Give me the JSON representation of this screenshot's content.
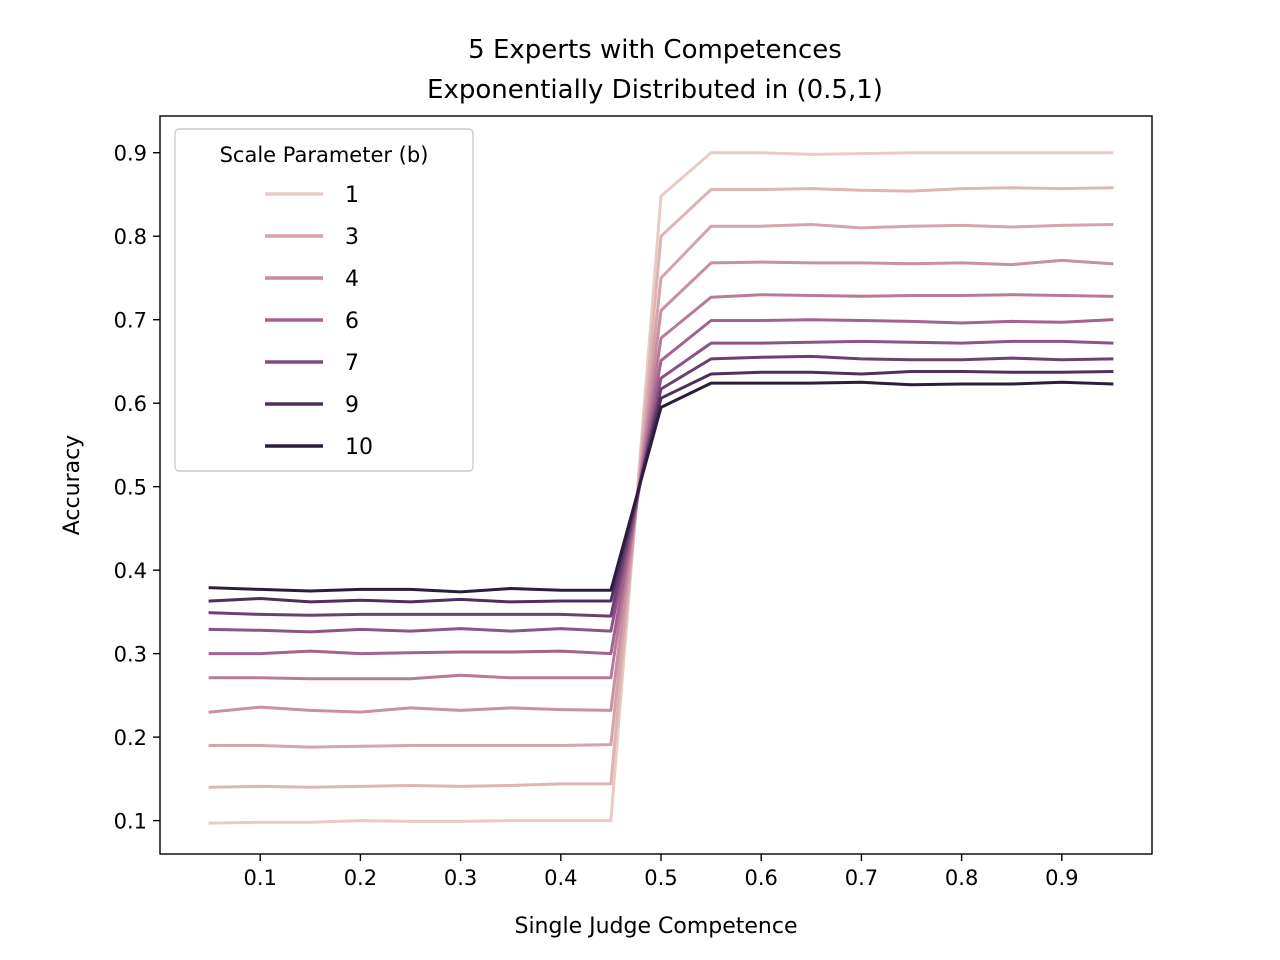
{
  "chart_data": {
    "type": "line",
    "title_line1": "5 Experts with Competences",
    "title_line2": "Exponentially Distributed in (0.5,1)",
    "xlabel": "Single Judge Competence",
    "ylabel": "Accuracy",
    "xlim": [
      0.0,
      0.99
    ],
    "ylim": [
      0.06,
      0.944
    ],
    "xticks": [
      0.1,
      0.2,
      0.3,
      0.4,
      0.5,
      0.6,
      0.7,
      0.8,
      0.9
    ],
    "xtick_labels": [
      "0.1",
      "0.2",
      "0.3",
      "0.4",
      "0.5",
      "0.6",
      "0.7",
      "0.8",
      "0.9"
    ],
    "yticks": [
      0.1,
      0.2,
      0.3,
      0.4,
      0.5,
      0.6,
      0.7,
      0.8,
      0.9
    ],
    "ytick_labels": [
      "0.1",
      "0.2",
      "0.3",
      "0.4",
      "0.5",
      "0.6",
      "0.7",
      "0.8",
      "0.9"
    ],
    "grid": false,
    "legend": {
      "title": "Scale Parameter (b)",
      "placement": "upper-left",
      "entries": [
        {
          "label": "1",
          "color": "#e8ccc4"
        },
        {
          "label": "3",
          "color": "#d6a2ac"
        },
        {
          "label": "4",
          "color": "#c78a9f"
        },
        {
          "label": "6",
          "color": "#a4628f"
        },
        {
          "label": "7",
          "color": "#844a7e"
        },
        {
          "label": "9",
          "color": "#4e2f5f"
        },
        {
          "label": "10",
          "color": "#2d1d3d"
        }
      ]
    },
    "x": [
      0.05,
      0.1,
      0.15,
      0.2,
      0.25,
      0.3,
      0.35,
      0.4,
      0.45,
      0.5,
      0.55,
      0.6,
      0.65,
      0.7,
      0.75,
      0.8,
      0.85,
      0.9,
      0.95
    ],
    "series": [
      {
        "color": "#e8ccc4",
        "values": [
          0.097,
          0.098,
          0.098,
          0.1,
          0.099,
          0.099,
          0.1,
          0.1,
          0.1,
          0.848,
          0.9,
          0.9,
          0.898,
          0.899,
          0.9,
          0.9,
          0.9,
          0.9,
          0.9
        ]
      },
      {
        "color": "#dfb4b4",
        "values": [
          0.14,
          0.141,
          0.14,
          0.141,
          0.142,
          0.141,
          0.142,
          0.144,
          0.144,
          0.8,
          0.856,
          0.856,
          0.857,
          0.855,
          0.854,
          0.857,
          0.858,
          0.857,
          0.858
        ]
      },
      {
        "color": "#d6a2ac",
        "values": [
          0.19,
          0.19,
          0.188,
          0.189,
          0.19,
          0.19,
          0.19,
          0.19,
          0.191,
          0.75,
          0.812,
          0.812,
          0.814,
          0.81,
          0.812,
          0.813,
          0.811,
          0.813,
          0.814
        ]
      },
      {
        "color": "#c98fa2",
        "values": [
          0.23,
          0.236,
          0.232,
          0.23,
          0.235,
          0.232,
          0.235,
          0.233,
          0.232,
          0.711,
          0.768,
          0.769,
          0.768,
          0.768,
          0.767,
          0.768,
          0.766,
          0.771,
          0.767
        ]
      },
      {
        "color": "#b97a99",
        "values": [
          0.271,
          0.271,
          0.27,
          0.27,
          0.27,
          0.274,
          0.271,
          0.271,
          0.271,
          0.678,
          0.727,
          0.73,
          0.729,
          0.728,
          0.729,
          0.729,
          0.73,
          0.729,
          0.728
        ]
      },
      {
        "color": "#a4628f",
        "values": [
          0.3,
          0.3,
          0.303,
          0.3,
          0.301,
          0.302,
          0.302,
          0.303,
          0.3,
          0.651,
          0.699,
          0.699,
          0.7,
          0.699,
          0.698,
          0.696,
          0.698,
          0.697,
          0.7
        ]
      },
      {
        "color": "#8e5284",
        "values": [
          0.329,
          0.328,
          0.326,
          0.329,
          0.327,
          0.33,
          0.327,
          0.33,
          0.327,
          0.63,
          0.672,
          0.672,
          0.673,
          0.674,
          0.673,
          0.672,
          0.674,
          0.674,
          0.672
        ]
      },
      {
        "color": "#6e3f72",
        "values": [
          0.349,
          0.347,
          0.346,
          0.347,
          0.347,
          0.347,
          0.347,
          0.347,
          0.345,
          0.617,
          0.653,
          0.655,
          0.656,
          0.653,
          0.652,
          0.652,
          0.654,
          0.652,
          0.653
        ]
      },
      {
        "color": "#4e2f5f",
        "values": [
          0.363,
          0.366,
          0.362,
          0.364,
          0.362,
          0.365,
          0.362,
          0.363,
          0.363,
          0.606,
          0.635,
          0.637,
          0.637,
          0.635,
          0.638,
          0.638,
          0.637,
          0.637,
          0.638
        ]
      },
      {
        "color": "#2d1d3d",
        "values": [
          0.379,
          0.377,
          0.375,
          0.377,
          0.377,
          0.374,
          0.378,
          0.376,
          0.376,
          0.595,
          0.624,
          0.624,
          0.624,
          0.625,
          0.622,
          0.623,
          0.623,
          0.625,
          0.623
        ]
      }
    ]
  }
}
